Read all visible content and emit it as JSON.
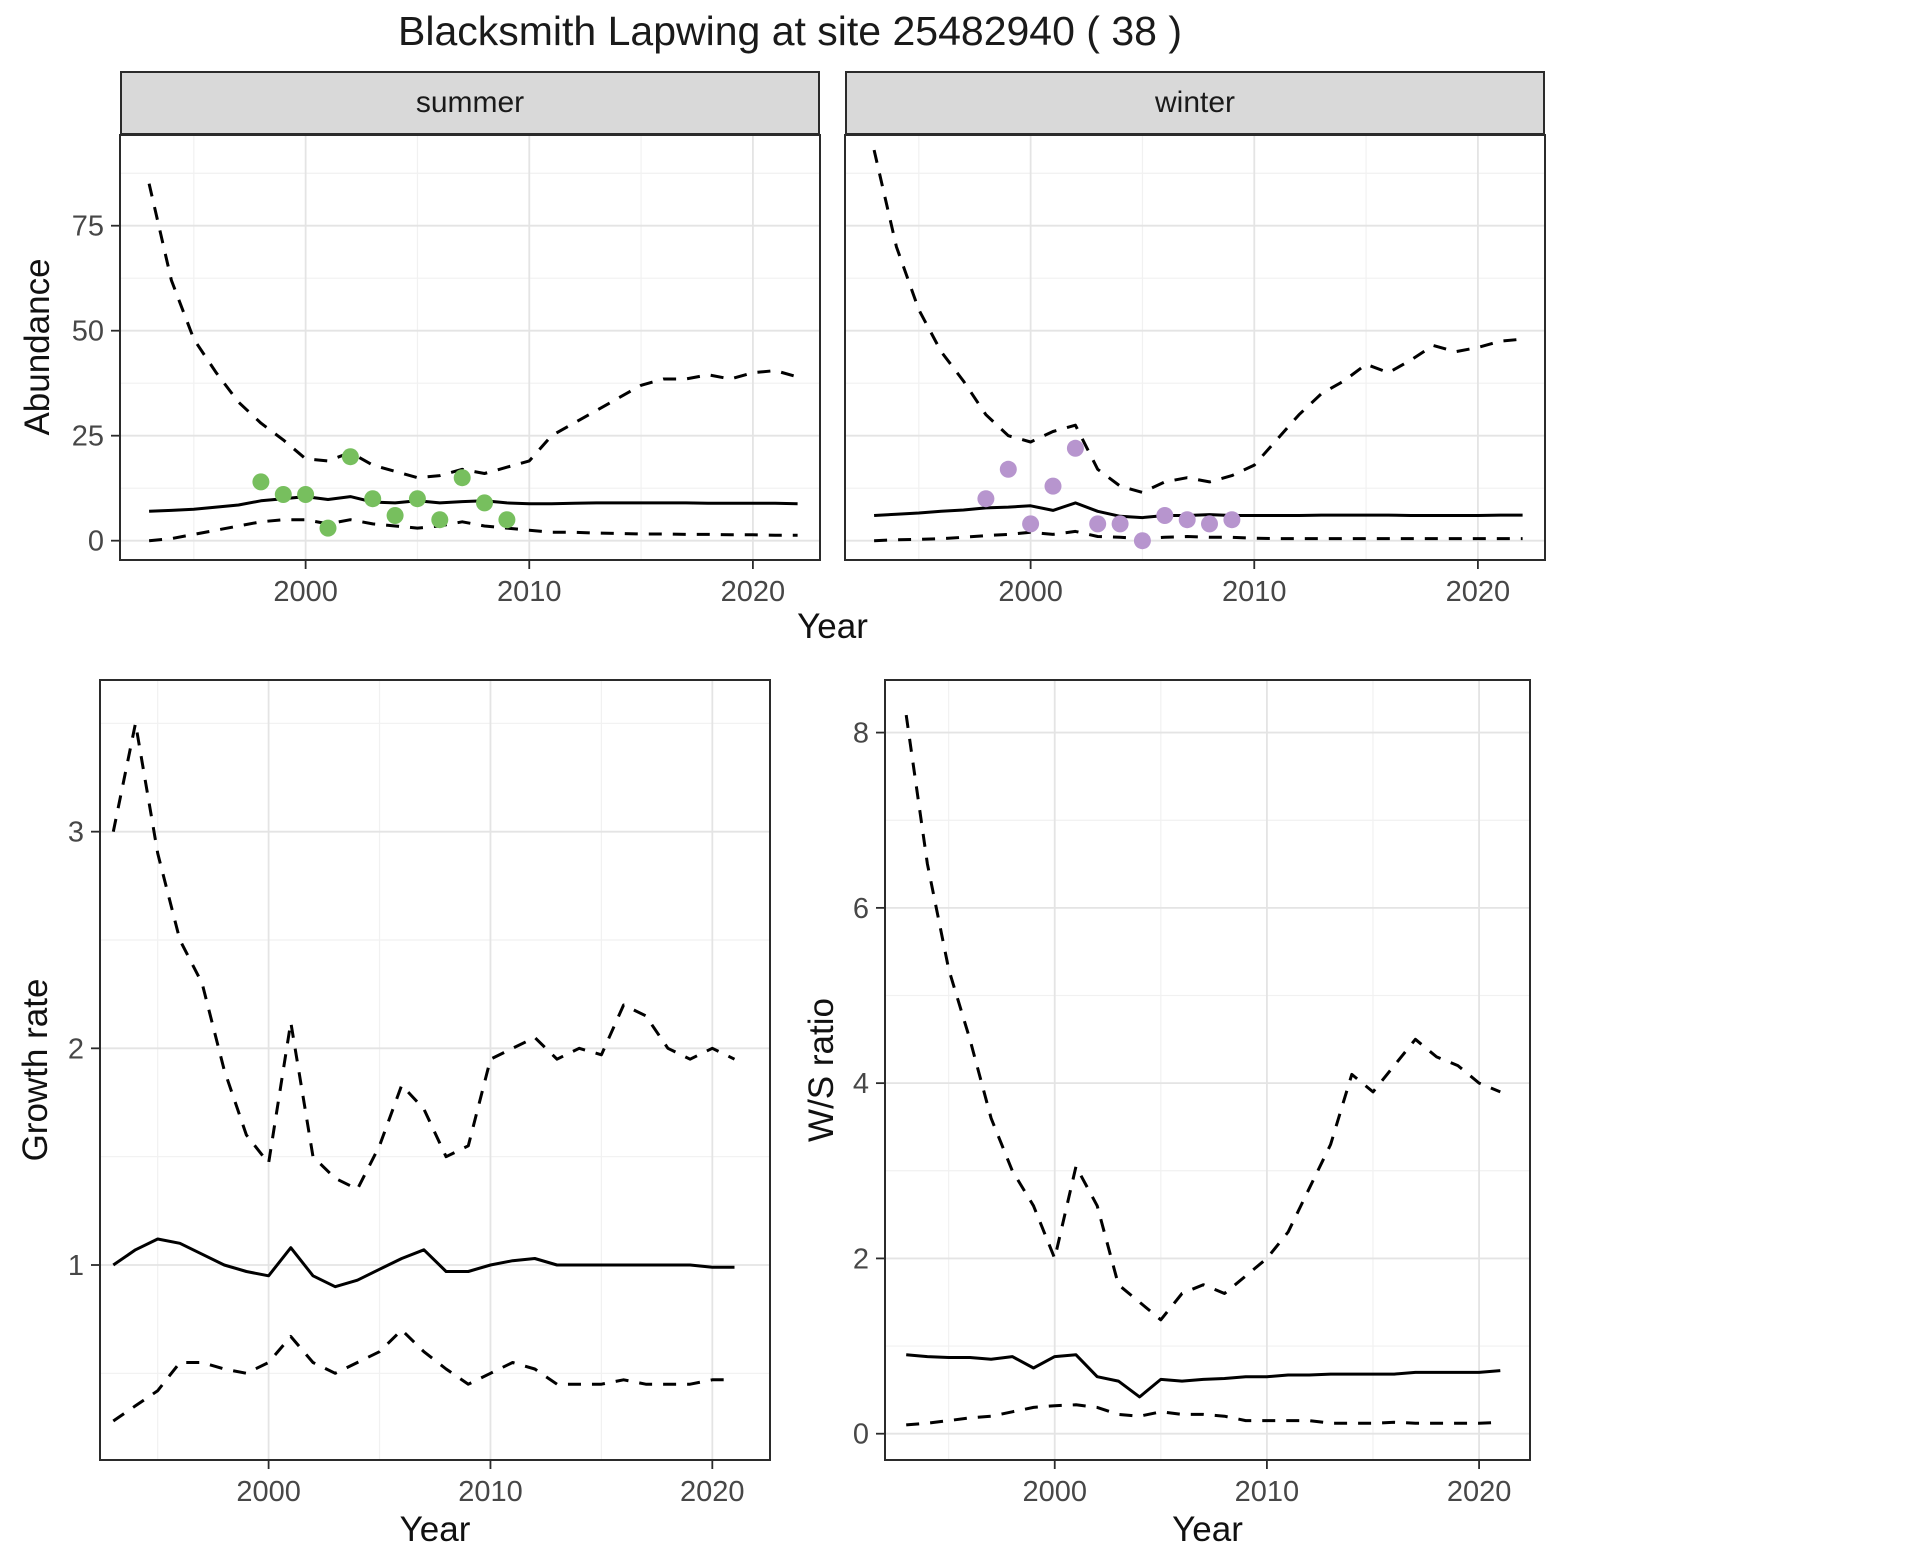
{
  "title": "Blacksmith Lapwing at site 25482940 ( 38 )",
  "palette": {
    "summer_points": "#77bf5e",
    "winter_points": "#b795ce",
    "line": "#000000",
    "grid_major": "#e4e4e4",
    "grid_minor": "#f1f1f1",
    "strip_bg": "#d9d9d9",
    "panel_border": "#2b2b2b",
    "axis_text": "#474747",
    "title_text": "#1a1a1a"
  },
  "chart_data": [
    {
      "id": "abundance_summer",
      "type": "line",
      "facet": "summer",
      "xlabel": "Year",
      "ylabel": "Abundance",
      "xlim": [
        1991.7,
        2023.0
      ],
      "ylim": [
        -4.6,
        96.6
      ],
      "xticks": [
        2000,
        2010,
        2020
      ],
      "xminor": [
        1995,
        2005,
        2015
      ],
      "yticks": [
        0,
        25,
        50,
        75
      ],
      "yminor": [
        12.5,
        37.5,
        62.5,
        87.5
      ],
      "x": [
        1993,
        1994,
        1995,
        1996,
        1997,
        1998,
        1999,
        2000,
        2001,
        2002,
        2003,
        2004,
        2005,
        2006,
        2007,
        2008,
        2009,
        2010,
        2011,
        2012,
        2013,
        2014,
        2015,
        2016,
        2017,
        2018,
        2019,
        2020,
        2021,
        2022
      ],
      "series": [
        {
          "name": "median",
          "style": "solid",
          "values": [
            7.0,
            7.2,
            7.5,
            8.0,
            8.5,
            9.5,
            10.0,
            10.5,
            9.8,
            10.5,
            9.2,
            9.0,
            9.5,
            9.0,
            9.3,
            9.5,
            9.0,
            8.8,
            8.8,
            8.9,
            9.0,
            9.0,
            9.0,
            9.0,
            9.0,
            8.9,
            8.9,
            8.9,
            8.9,
            8.8
          ]
        },
        {
          "name": "upper-ci",
          "style": "dashed",
          "values": [
            85,
            62,
            48,
            40,
            33,
            28,
            24,
            19.5,
            19,
            21,
            18,
            16.5,
            15,
            15.5,
            17,
            16,
            17.5,
            19,
            25,
            28,
            31,
            34,
            37,
            38.5,
            38.5,
            39.5,
            38.5,
            40,
            40.5,
            39
          ]
        },
        {
          "name": "lower-ci",
          "style": "dashed",
          "values": [
            0,
            0.5,
            1.5,
            2.5,
            3.5,
            4.5,
            5,
            5,
            4,
            5,
            4,
            3.5,
            3,
            3.5,
            4.5,
            3.5,
            3,
            2.5,
            2,
            2,
            1.8,
            1.7,
            1.6,
            1.6,
            1.5,
            1.5,
            1.4,
            1.4,
            1.3,
            1.3
          ]
        }
      ],
      "points": {
        "color_key": "summer_points",
        "x": [
          1998,
          1999,
          2000,
          2001,
          2002,
          2003,
          2004,
          2005,
          2006,
          2007,
          2008,
          2009
        ],
        "y": [
          14,
          11,
          11,
          3,
          20,
          10,
          6,
          10,
          5,
          15,
          9,
          5
        ]
      }
    },
    {
      "id": "abundance_winter",
      "type": "line",
      "facet": "winter",
      "xlabel": "Year",
      "ylabel": "Abundance",
      "xlim": [
        1991.7,
        2023.0
      ],
      "ylim": [
        -4.6,
        96.6
      ],
      "xticks": [
        2000,
        2010,
        2020
      ],
      "xminor": [
        1995,
        2005,
        2015
      ],
      "yticks": [
        0,
        25,
        50,
        75
      ],
      "yminor": [
        12.5,
        37.5,
        62.5,
        87.5
      ],
      "x": [
        1993,
        1994,
        1995,
        1996,
        1997,
        1998,
        1999,
        2000,
        2001,
        2002,
        2003,
        2004,
        2005,
        2006,
        2007,
        2008,
        2009,
        2010,
        2011,
        2012,
        2013,
        2014,
        2015,
        2016,
        2017,
        2018,
        2019,
        2020,
        2021,
        2022
      ],
      "series": [
        {
          "name": "median",
          "style": "solid",
          "values": [
            6.0,
            6.3,
            6.6,
            7.0,
            7.3,
            7.8,
            8.0,
            8.3,
            7.2,
            9.0,
            7.0,
            5.8,
            5.5,
            6.0,
            6.0,
            6.2,
            6.0,
            6.0,
            6.0,
            6.0,
            6.1,
            6.1,
            6.1,
            6.1,
            6.0,
            6.0,
            6.0,
            6.0,
            6.1,
            6.1
          ]
        },
        {
          "name": "upper-ci",
          "style": "dashed",
          "values": [
            93,
            70,
            55,
            45,
            38,
            30,
            25,
            23.5,
            26,
            27.5,
            17,
            13,
            11.5,
            14,
            15,
            14,
            15.5,
            18,
            24,
            30,
            35,
            38,
            42,
            40,
            43,
            46.5,
            45,
            46,
            47.5,
            48
          ]
        },
        {
          "name": "lower-ci",
          "style": "dashed",
          "values": [
            0,
            0.2,
            0.3,
            0.5,
            0.8,
            1.2,
            1.5,
            2.0,
            1.5,
            2.2,
            1.0,
            0.8,
            0.5,
            0.8,
            1.0,
            0.8,
            0.8,
            0.6,
            0.5,
            0.5,
            0.5,
            0.5,
            0.5,
            0.5,
            0.5,
            0.5,
            0.5,
            0.5,
            0.5,
            0.5
          ]
        }
      ],
      "points": {
        "color_key": "winter_points",
        "x": [
          1998,
          1999,
          2000,
          2001,
          2002,
          2003,
          2004,
          2005,
          2006,
          2007,
          2008,
          2009
        ],
        "y": [
          10,
          17,
          4,
          13,
          22,
          4,
          4,
          0,
          6,
          5,
          4,
          5
        ]
      }
    },
    {
      "id": "growth_rate",
      "type": "line",
      "facet": "",
      "xlabel": "Year",
      "ylabel": "Growth rate",
      "xlim": [
        1992.4,
        2022.6
      ],
      "ylim": [
        0.1,
        3.7
      ],
      "xticks": [
        2000,
        2010,
        2020
      ],
      "xminor": [
        1995,
        2005,
        2015
      ],
      "yticks": [
        1,
        2,
        3
      ],
      "yminor": [
        0.5,
        1.5,
        2.5,
        3.5
      ],
      "x": [
        1993,
        1994,
        1995,
        1996,
        1997,
        1998,
        1999,
        2000,
        2001,
        2002,
        2003,
        2004,
        2005,
        2006,
        2007,
        2008,
        2009,
        2010,
        2011,
        2012,
        2013,
        2014,
        2015,
        2016,
        2017,
        2018,
        2019,
        2020,
        2021
      ],
      "series": [
        {
          "name": "median",
          "style": "solid",
          "values": [
            1.0,
            1.07,
            1.12,
            1.1,
            1.05,
            1.0,
            0.97,
            0.95,
            1.08,
            0.95,
            0.9,
            0.93,
            0.98,
            1.03,
            1.07,
            0.97,
            0.97,
            1.0,
            1.02,
            1.03,
            1.0,
            1.0,
            1.0,
            1.0,
            1.0,
            1.0,
            1.0,
            0.99,
            0.99
          ]
        },
        {
          "name": "upper-ci",
          "style": "dashed",
          "values": [
            3.0,
            3.5,
            2.9,
            2.5,
            2.3,
            1.9,
            1.6,
            1.47,
            2.12,
            1.5,
            1.4,
            1.35,
            1.55,
            1.83,
            1.72,
            1.5,
            1.55,
            1.95,
            2.0,
            2.05,
            1.95,
            2.0,
            1.97,
            2.2,
            2.15,
            2.0,
            1.95,
            2.0,
            1.95
          ]
        },
        {
          "name": "lower-ci",
          "style": "dashed",
          "values": [
            0.28,
            0.35,
            0.42,
            0.55,
            0.55,
            0.52,
            0.5,
            0.55,
            0.67,
            0.55,
            0.5,
            0.55,
            0.6,
            0.7,
            0.6,
            0.52,
            0.45,
            0.5,
            0.55,
            0.52,
            0.45,
            0.45,
            0.45,
            0.47,
            0.45,
            0.45,
            0.45,
            0.47,
            0.47
          ]
        }
      ]
    },
    {
      "id": "ws_ratio",
      "type": "line",
      "facet": "",
      "xlabel": "Year",
      "ylabel": "W/S ratio",
      "xlim": [
        1992.0,
        2022.4
      ],
      "ylim": [
        -0.3,
        8.6
      ],
      "xticks": [
        2000,
        2010,
        2020
      ],
      "xminor": [
        1995,
        2005,
        2015
      ],
      "yticks": [
        0,
        2,
        4,
        6,
        8
      ],
      "yminor": [
        1,
        3,
        5,
        7
      ],
      "x": [
        1993,
        1994,
        1995,
        1996,
        1997,
        1998,
        1999,
        2000,
        2001,
        2002,
        2003,
        2004,
        2005,
        2006,
        2007,
        2008,
        2009,
        2010,
        2011,
        2012,
        2013,
        2014,
        2015,
        2016,
        2017,
        2018,
        2019,
        2020,
        2021
      ],
      "series": [
        {
          "name": "median",
          "style": "solid",
          "values": [
            0.9,
            0.88,
            0.87,
            0.87,
            0.85,
            0.88,
            0.75,
            0.88,
            0.9,
            0.65,
            0.6,
            0.42,
            0.62,
            0.6,
            0.62,
            0.63,
            0.65,
            0.65,
            0.67,
            0.67,
            0.68,
            0.68,
            0.68,
            0.68,
            0.7,
            0.7,
            0.7,
            0.7,
            0.72
          ]
        },
        {
          "name": "upper-ci",
          "style": "dashed",
          "values": [
            8.2,
            6.5,
            5.3,
            4.5,
            3.6,
            3.0,
            2.6,
            2.0,
            3.05,
            2.6,
            1.7,
            1.5,
            1.3,
            1.6,
            1.7,
            1.6,
            1.8,
            2.0,
            2.3,
            2.8,
            3.3,
            4.1,
            3.9,
            4.2,
            4.5,
            4.3,
            4.2,
            4.0,
            3.9
          ]
        },
        {
          "name": "lower-ci",
          "style": "dashed",
          "values": [
            0.1,
            0.12,
            0.15,
            0.18,
            0.2,
            0.25,
            0.3,
            0.32,
            0.33,
            0.3,
            0.22,
            0.2,
            0.25,
            0.22,
            0.22,
            0.2,
            0.15,
            0.15,
            0.15,
            0.15,
            0.12,
            0.12,
            0.12,
            0.13,
            0.12,
            0.12,
            0.12,
            0.12,
            0.13
          ]
        }
      ]
    }
  ]
}
